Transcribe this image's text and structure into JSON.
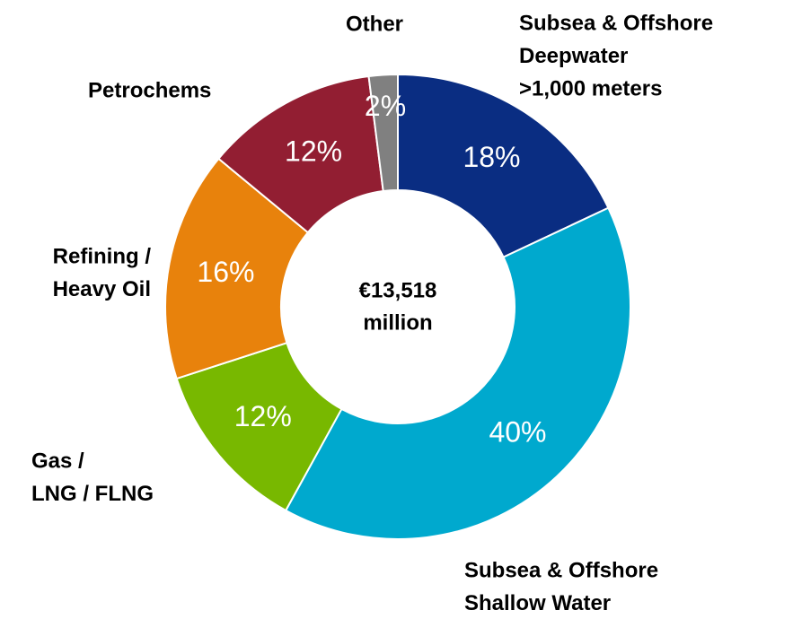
{
  "chart_data": {
    "type": "donut",
    "categories": [
      [
        "Subsea & Offshore",
        "Deepwater",
        ">1,000 meters"
      ],
      [
        "Subsea & Offshore",
        "Shallow Water"
      ],
      [
        "Gas /",
        "LNG / FLNG"
      ],
      [
        "Refining /",
        "Heavy Oil"
      ],
      [
        "Petrochems"
      ],
      [
        "Other"
      ]
    ],
    "values": [
      18,
      40,
      12,
      16,
      12,
      2
    ],
    "value_labels": [
      "18%",
      "40%",
      "12%",
      "16%",
      "12%",
      "2%"
    ],
    "colors": [
      "#0a2d82",
      "#00a9ce",
      "#78b800",
      "#e8820c",
      "#921e32",
      "#808080"
    ],
    "center_label": [
      "€13,518",
      "million"
    ]
  }
}
